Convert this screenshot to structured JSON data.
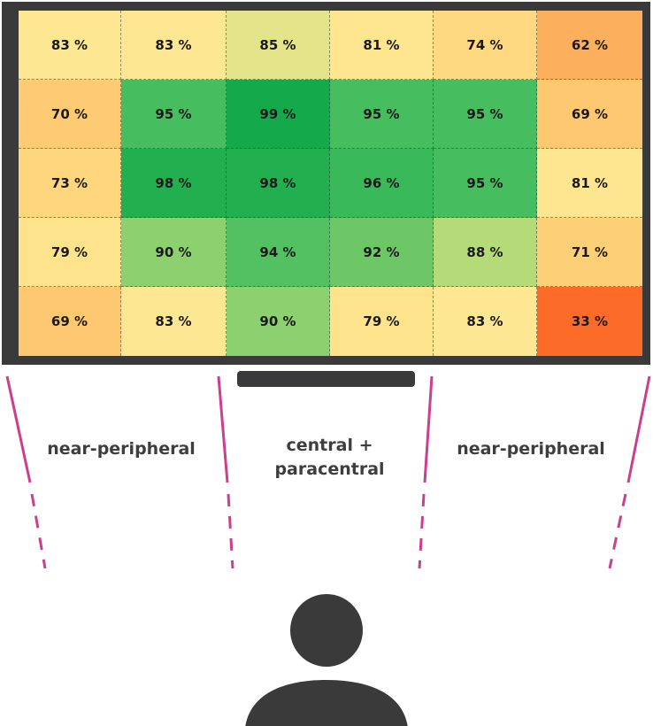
{
  "heatmap": {
    "rows": [
      [
        83,
        83,
        85,
        81,
        74,
        62
      ],
      [
        70,
        95,
        99,
        95,
        95,
        69
      ],
      [
        73,
        98,
        98,
        96,
        95,
        81
      ],
      [
        79,
        90,
        94,
        92,
        88,
        71
      ],
      [
        69,
        83,
        90,
        79,
        83,
        33
      ]
    ],
    "unit": "%"
  },
  "zones": {
    "left": "near-peripheral",
    "center_line1": "central +",
    "center_line2": "paracentral",
    "right": "near-peripheral"
  },
  "colors": {
    "monitor": "#3a3a3a",
    "zone_line": "#cc3f8f",
    "person": "#3a3a3a",
    "label": "#3e3e3e"
  }
}
